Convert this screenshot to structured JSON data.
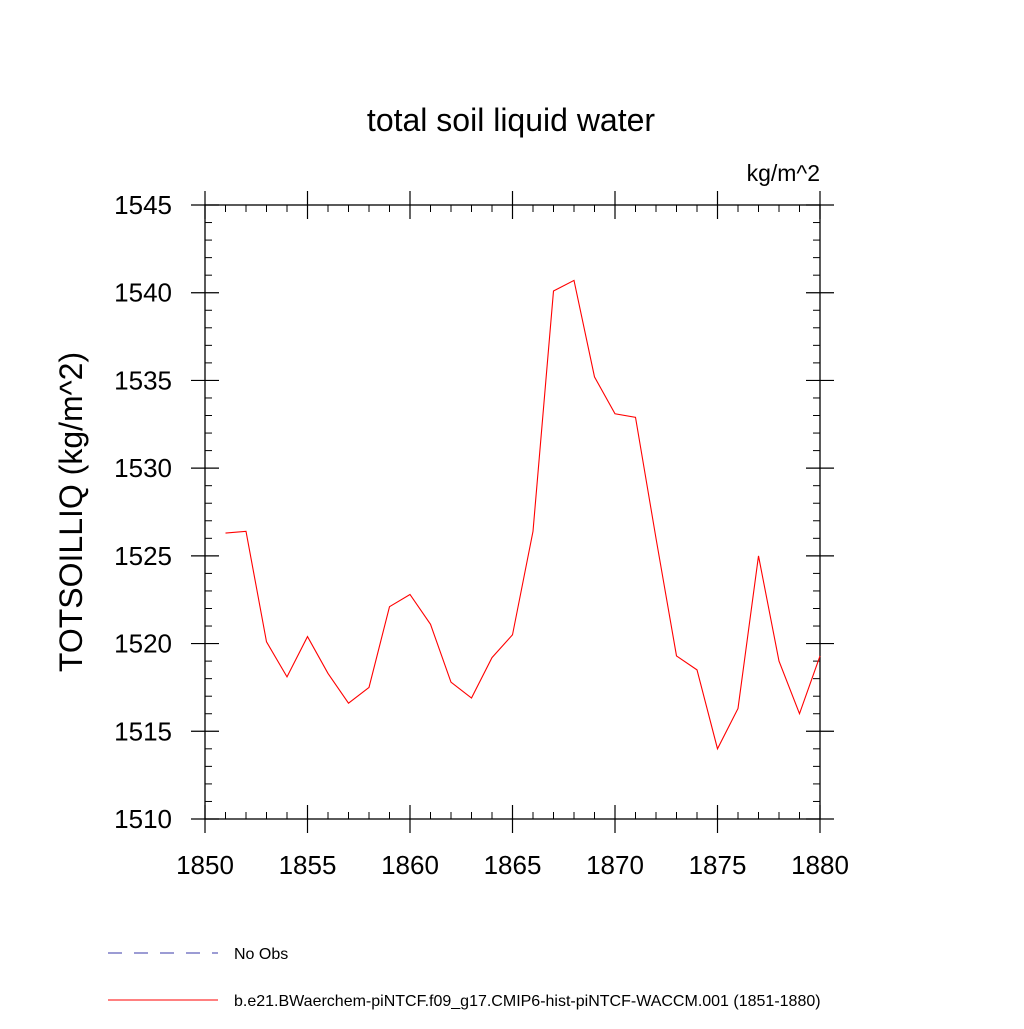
{
  "chart_data": {
    "type": "line",
    "title": "total soil liquid water",
    "units_label": "kg/m^2",
    "ylabel": "TOTSOILLIQ  (kg/m^2)",
    "xlabel": "",
    "xlim": [
      1850,
      1880
    ],
    "ylim": [
      1510,
      1545
    ],
    "x_ticks": [
      1850,
      1855,
      1860,
      1865,
      1870,
      1875,
      1880
    ],
    "y_ticks": [
      1510,
      1515,
      1520,
      1525,
      1530,
      1535,
      1540,
      1545
    ],
    "x_minor_step": 1,
    "y_minor_step": 1,
    "grid": false,
    "legend_position": "bottom-left",
    "series": [
      {
        "name": "b.e21.BWaerchem-piNTCF.f09_g17.CMIP6-hist-piNTCF-WACCM.001 (1851-1880)",
        "color": "#ff0000",
        "dash": "solid",
        "x": [
          1851,
          1852,
          1853,
          1854,
          1855,
          1856,
          1857,
          1858,
          1859,
          1860,
          1861,
          1862,
          1863,
          1864,
          1865,
          1866,
          1867,
          1868,
          1869,
          1870,
          1871,
          1872,
          1873,
          1874,
          1875,
          1876,
          1877,
          1878,
          1879,
          1880
        ],
        "values": [
          1526.3,
          1526.4,
          1520.1,
          1518.1,
          1520.4,
          1518.3,
          1516.6,
          1517.5,
          1522.1,
          1522.8,
          1521.1,
          1517.8,
          1516.9,
          1519.2,
          1520.5,
          1526.4,
          1540.1,
          1540.7,
          1535.2,
          1533.1,
          1532.9,
          1526.0,
          1519.3,
          1518.5,
          1514.0,
          1516.3,
          1525.0,
          1519.0,
          1516.0,
          1519.3
        ]
      }
    ],
    "legend": [
      {
        "label": "No Obs",
        "color": "#3a3aa8",
        "dash": "dashed"
      },
      {
        "label": "b.e21.BWaerchem-piNTCF.f09_g17.CMIP6-hist-piNTCF-WACCM.001 (1851-1880)",
        "color": "#ff0000",
        "dash": "solid"
      }
    ]
  }
}
